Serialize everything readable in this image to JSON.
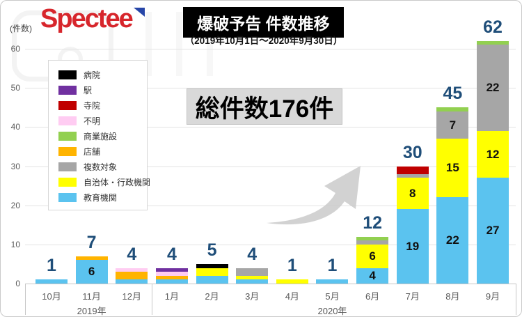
{
  "header": {
    "logo_text": "Spectee",
    "title": "爆破予告 件数推移",
    "subtitle": "（2019年10月1日～2020年9月30日）",
    "y_axis_unit": "(件数)"
  },
  "annotation": {
    "total_label": "総件数176件"
  },
  "colors": {
    "logo_red": "#d7262c",
    "logo_mark_blue": "#2746a8",
    "total_label_navy": "#1f4e79",
    "callout_bg": "#d9d9d9",
    "arrow_gray": "#cacaca"
  },
  "chart_data": {
    "type": "bar",
    "stacked": true,
    "title": "爆破予告 件数推移",
    "subtitle": "（2019年10月1日～2020年9月30日）",
    "ylabel": "(件数)",
    "ylim": [
      0,
      60
    ],
    "yticks": [
      0,
      10,
      20,
      30,
      40,
      50,
      60
    ],
    "grid": true,
    "legend_position": "upper-left",
    "categories": [
      "10月",
      "11月",
      "12月",
      "1月",
      "2月",
      "3月",
      "4月",
      "5月",
      "6月",
      "7月",
      "8月",
      "9月"
    ],
    "year_groups": [
      {
        "label": "2019年",
        "span": [
          0,
          2
        ]
      },
      {
        "label": "2020年",
        "span": [
          3,
          11
        ]
      }
    ],
    "totals": [
      1,
      7,
      4,
      4,
      5,
      4,
      1,
      1,
      12,
      30,
      45,
      62
    ],
    "grand_total": 176,
    "stack_order": "bottom_to_top",
    "segment_label_min": 4,
    "series": [
      {
        "name": "教育機関",
        "color": "#5bc3ef",
        "values": [
          1,
          6,
          1,
          1,
          2,
          1,
          0,
          1,
          4,
          19,
          22,
          27
        ]
      },
      {
        "name": "自治体・行政機関",
        "color": "#ffff00",
        "values": [
          0,
          0,
          0,
          0,
          2,
          1,
          1,
          0,
          6,
          8,
          15,
          12
        ]
      },
      {
        "name": "複数対象",
        "color": "#a6a6a6",
        "values": [
          0,
          0,
          0,
          0,
          0,
          2,
          0,
          0,
          1,
          1,
          7,
          22
        ]
      },
      {
        "name": "店舗",
        "color": "#ffb400",
        "values": [
          0,
          1,
          2,
          1,
          0,
          0,
          0,
          0,
          0,
          0,
          0,
          0
        ]
      },
      {
        "name": "商業施設",
        "color": "#92d050",
        "values": [
          0,
          0,
          0,
          0,
          0,
          0,
          0,
          0,
          1,
          0,
          1,
          1
        ]
      },
      {
        "name": "不明",
        "color": "#ffccf2",
        "values": [
          0,
          0,
          1,
          1,
          0,
          0,
          0,
          0,
          0,
          0,
          0,
          0
        ]
      },
      {
        "name": "寺院",
        "color": "#c00000",
        "values": [
          0,
          0,
          0,
          0,
          0,
          0,
          0,
          0,
          0,
          2,
          0,
          0
        ]
      },
      {
        "name": "駅",
        "color": "#7030a0",
        "values": [
          0,
          0,
          0,
          1,
          0,
          0,
          0,
          0,
          0,
          0,
          0,
          0
        ]
      },
      {
        "name": "病院",
        "color": "#000000",
        "values": [
          0,
          0,
          0,
          0,
          1,
          0,
          0,
          0,
          0,
          0,
          0,
          0
        ]
      }
    ]
  }
}
